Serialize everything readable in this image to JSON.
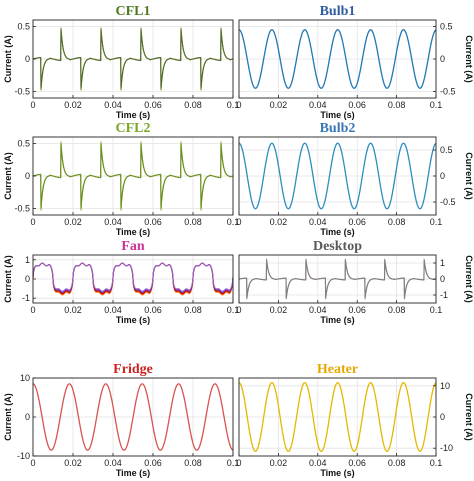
{
  "chart_data": [
    {
      "id": "cfl1",
      "type": "line",
      "title": "CFL1",
      "title_color": "#4f7a22",
      "xlabel": "Time (s)",
      "ylabel": "Current (A)",
      "ylabel_side": "left",
      "xlim": [
        0,
        0.1
      ],
      "ylim": [
        -0.6,
        0.6
      ],
      "xticks": [
        0,
        0.02,
        0.04,
        0.06,
        0.08,
        0.1
      ],
      "xtick_labels": [
        "0",
        "0.02",
        "0.04",
        "0.06",
        "0.08",
        "0.1"
      ],
      "yticks": [
        0.5,
        0,
        -0.5
      ],
      "ytick_labels": [
        "0.5",
        "0",
        "-0.5"
      ],
      "grid": true,
      "waveform": "spike",
      "period": 0.02,
      "amplitude": 0.5,
      "colors": [
        "#6b8e23",
        "#556b2f"
      ]
    },
    {
      "id": "bulb1",
      "type": "line",
      "title": "Bulb1",
      "title_color": "#2e5f9e",
      "xlabel": "Time (s)",
      "ylabel": "Current (A)",
      "ylabel_side": "right",
      "xlim": [
        0,
        0.1
      ],
      "ylim": [
        -0.6,
        0.6
      ],
      "xticks": [
        0,
        0.02,
        0.04,
        0.06,
        0.08,
        0.1
      ],
      "xtick_labels": [
        "0",
        "0.02",
        "0.04",
        "0.06",
        "0.08",
        "0.1"
      ],
      "yticks": [
        0.5,
        0,
        -0.5
      ],
      "ytick_labels": [
        "0.5",
        "0",
        "-0.5"
      ],
      "grid": true,
      "waveform": "sine",
      "period": 0.0167,
      "amplitude": 0.45,
      "phase": 1.5708,
      "colors": [
        "#1f77b4"
      ]
    },
    {
      "id": "cfl2",
      "type": "line",
      "title": "CFL2",
      "title_color": "#7aa62a",
      "xlabel": "Time (s)",
      "ylabel": "Current (A)",
      "ylabel_side": "left",
      "xlim": [
        0,
        0.1
      ],
      "ylim": [
        -0.6,
        0.6
      ],
      "xticks": [
        0,
        0.02,
        0.04,
        0.06,
        0.08,
        0.1
      ],
      "xtick_labels": [
        "0",
        "0.02",
        "0.04",
        "0.06",
        "0.08",
        "0.1"
      ],
      "yticks": [
        0.5,
        0,
        -0.5
      ],
      "ytick_labels": [
        "0.5",
        "0",
        "-0.5"
      ],
      "grid": true,
      "waveform": "spike",
      "period": 0.02,
      "amplitude": 0.55,
      "colors": [
        "#8ab833",
        "#6b8e23"
      ]
    },
    {
      "id": "bulb2",
      "type": "line",
      "title": "Bulb2",
      "title_color": "#3a78b4",
      "xlabel": "Time (s)",
      "ylabel": "Current (A)",
      "ylabel_side": "right",
      "xlim": [
        0,
        0.1
      ],
      "ylim": [
        -0.75,
        0.75
      ],
      "xticks": [
        0,
        0.02,
        0.04,
        0.06,
        0.08,
        0.1
      ],
      "xtick_labels": [
        "0",
        "0.02",
        "0.04",
        "0.06",
        "0.08",
        "0.1"
      ],
      "yticks": [
        0.5,
        0,
        -0.5
      ],
      "ytick_labels": [
        "0.5",
        "0",
        "-0.5"
      ],
      "grid": true,
      "waveform": "sine",
      "period": 0.0167,
      "amplitude": 0.63,
      "phase": 1.5708,
      "colors": [
        "#2a8fbf"
      ]
    },
    {
      "id": "fan",
      "type": "line",
      "title": "Fan",
      "title_color": "#cc3399",
      "xlabel": "Time (s)",
      "ylabel": "Current (A)",
      "ylabel_side": "left",
      "xlim": [
        0,
        0.1
      ],
      "ylim": [
        -1.25,
        1.25
      ],
      "xticks": [
        0,
        0.02,
        0.04,
        0.06,
        0.08,
        0.1
      ],
      "xtick_labels": [
        "0",
        "0.02",
        "0.04",
        "0.06",
        "0.08",
        "0.1"
      ],
      "yticks": [
        1,
        0,
        -1
      ],
      "ytick_labels": [
        "1",
        "0",
        "-1"
      ],
      "grid": true,
      "waveform": "fan",
      "period": 0.02,
      "amplitude": 1.05,
      "colors": [
        "#ff6600",
        "#cc0000",
        "#7030a0",
        "#9966cc"
      ]
    },
    {
      "id": "desktop",
      "type": "line",
      "title": "Desktop",
      "title_color": "#595959",
      "xlabel": "Time (s)",
      "ylabel": "Current (A)",
      "ylabel_side": "right",
      "xlim": [
        0,
        0.1
      ],
      "ylim": [
        -1.5,
        1.5
      ],
      "xticks": [
        0,
        0.02,
        0.04,
        0.06,
        0.08,
        0.1
      ],
      "xtick_labels": [
        "0",
        "0.02",
        "0.04",
        "0.06",
        "0.08",
        "0.1"
      ],
      "yticks": [
        1,
        0,
        -1
      ],
      "ytick_labels": [
        "1",
        "0",
        "-1"
      ],
      "grid": true,
      "waveform": "spike",
      "period": 0.02,
      "amplitude": 1.3,
      "colors": [
        "#b08080",
        "#7f7f7f"
      ]
    },
    {
      "id": "fridge",
      "type": "line",
      "title": "Fridge",
      "title_color": "#cc2222",
      "xlabel": "Time (s)",
      "ylabel": "Current (A)",
      "ylabel_side": "left",
      "xlim": [
        0,
        0.1
      ],
      "ylim": [
        -10,
        10
      ],
      "xticks": [
        0,
        0.02,
        0.04,
        0.06,
        0.08,
        0.1
      ],
      "xtick_labels": [
        "0",
        "0.02",
        "0.04",
        "0.06",
        "0.08",
        "0.1"
      ],
      "yticks": [
        10,
        0,
        -10
      ],
      "ytick_labels": [
        "10",
        "0",
        "-10"
      ],
      "grid": true,
      "waveform": "sine",
      "period": 0.0182,
      "amplitude": 8.5,
      "phase": 1.5708,
      "colors": [
        "#d9534f"
      ]
    },
    {
      "id": "heater",
      "type": "line",
      "title": "Heater",
      "title_color": "#e6a800",
      "xlabel": "Time (s)",
      "ylabel": "Current (A)",
      "ylabel_side": "right",
      "xlim": [
        0,
        0.1
      ],
      "ylim": [
        -12.5,
        12.5
      ],
      "xticks": [
        0,
        0.02,
        0.04,
        0.06,
        0.08,
        0.1
      ],
      "xtick_labels": [
        "0",
        "0.02",
        "0.04",
        "0.06",
        "0.08",
        "0.1"
      ],
      "yticks": [
        10,
        0,
        -10
      ],
      "ytick_labels": [
        "10",
        "0",
        "-10"
      ],
      "grid": true,
      "waveform": "sine",
      "period": 0.0167,
      "amplitude": 11,
      "phase": 1.5708,
      "colors": [
        "#e6b800"
      ]
    }
  ]
}
